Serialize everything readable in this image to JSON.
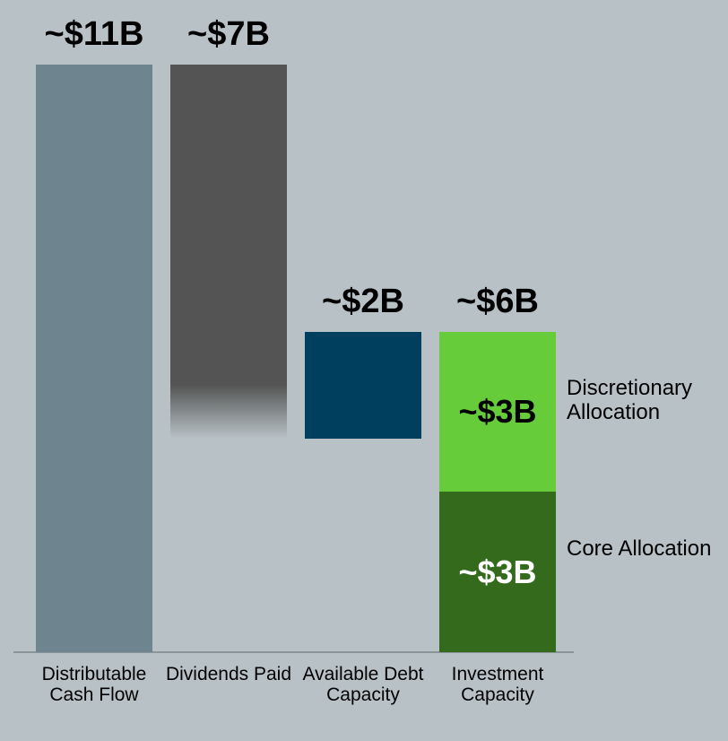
{
  "chart_data": {
    "type": "waterfall",
    "categories": [
      "Distributable Cash Flow",
      "Dividends Paid",
      "Available Debt Capacity",
      "Investment Capacity"
    ],
    "measure": [
      "absolute",
      "decrease",
      "increase",
      "total"
    ],
    "values": [
      11,
      7,
      2,
      6
    ],
    "value_labels": [
      "~$11B",
      "~$7B",
      "~$2B",
      "~$6B"
    ],
    "colors": [
      "#6e8590",
      "#545454",
      "#013f5e",
      null
    ],
    "segments": [
      {
        "name": "Core Allocation",
        "value": 3,
        "value_label": "~$3B",
        "color": "#336a1c",
        "label_color": "#ffffff"
      },
      {
        "name": "Discretionary Allocation",
        "value": 3,
        "value_label": "~$3B",
        "color": "#66cc3a",
        "label_color": "#000000"
      }
    ]
  }
}
